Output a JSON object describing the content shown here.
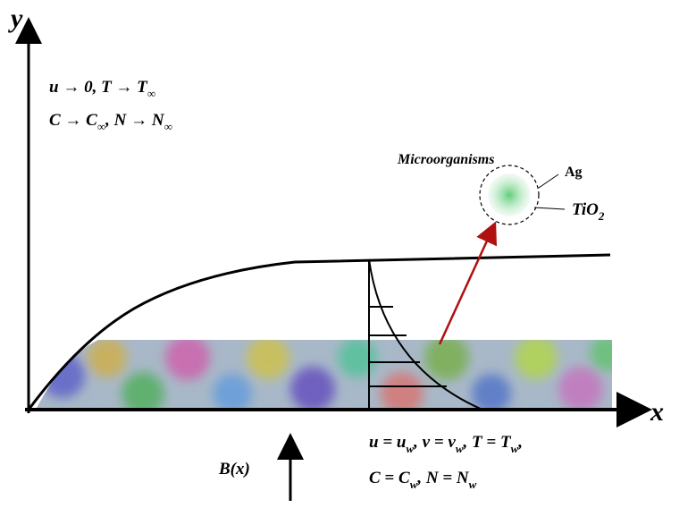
{
  "axes": {
    "y": "y",
    "x": "x"
  },
  "far_field": {
    "line1": [
      "u → 0, T → T",
      "∞"
    ],
    "line2": [
      "C → C",
      "∞",
      ", N → N",
      "∞"
    ]
  },
  "particle": {
    "microorganisms": "Microorganisms",
    "ag": "Ag",
    "tio2": [
      "TiO",
      "2"
    ]
  },
  "wall": {
    "line1": [
      "u = u",
      "w",
      ", v = v",
      "w",
      ", T = T",
      "w",
      ","
    ],
    "line2": [
      "C = C",
      "w",
      ", N = N",
      "w"
    ]
  },
  "field": "B(x)"
}
